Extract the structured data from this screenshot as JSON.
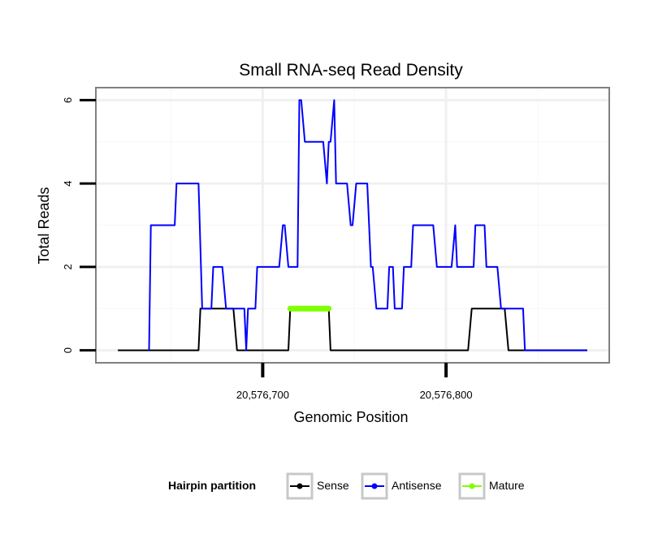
{
  "chart_data": {
    "type": "line",
    "title": "Small RNA-seq Read Density",
    "xlabel": "Genomic Position",
    "ylabel": "Total Reads",
    "xlim": [
      20576609,
      20576889
    ],
    "ylim": [
      -0.3,
      6.3
    ],
    "x_ticks": [
      20576700,
      20576800
    ],
    "x_tick_labels": [
      "20,576,700",
      "20,576,800"
    ],
    "y_ticks": [
      0,
      2,
      4,
      6
    ],
    "y_tick_labels": [
      "0",
      "2",
      "4",
      "6"
    ],
    "grid": true,
    "legend": {
      "title": "Hairpin partition",
      "position": "bottom",
      "entries": [
        "Sense",
        "Antisense",
        "Mature"
      ]
    },
    "series": [
      {
        "name": "Sense",
        "color": "#000000",
        "points": [
          [
            20576621,
            0
          ],
          [
            20576665,
            0
          ],
          [
            20576666,
            1
          ],
          [
            20576684,
            1
          ],
          [
            20576686,
            0
          ],
          [
            20576714,
            0
          ],
          [
            20576715,
            1
          ],
          [
            20576736,
            1
          ],
          [
            20576737,
            0
          ],
          [
            20576812,
            0
          ],
          [
            20576814,
            1
          ],
          [
            20576832,
            1
          ],
          [
            20576834,
            0
          ],
          [
            20576877,
            0
          ]
        ]
      },
      {
        "name": "Antisense",
        "color": "#0000ff",
        "points": [
          [
            20576638,
            0
          ],
          [
            20576639,
            3
          ],
          [
            20576652,
            3
          ],
          [
            20576653,
            4
          ],
          [
            20576665,
            4
          ],
          [
            20576667,
            1
          ],
          [
            20576672,
            1
          ],
          [
            20576673,
            2
          ],
          [
            20576678,
            2
          ],
          [
            20576680,
            1
          ],
          [
            20576690,
            1
          ],
          [
            20576691,
            0
          ],
          [
            20576692,
            1
          ],
          [
            20576696,
            1
          ],
          [
            20576697,
            2
          ],
          [
            20576709,
            2
          ],
          [
            20576711,
            3
          ],
          [
            20576712,
            3
          ],
          [
            20576714,
            2
          ],
          [
            20576719,
            2
          ],
          [
            20576720,
            6
          ],
          [
            20576721,
            6
          ],
          [
            20576723,
            5
          ],
          [
            20576733,
            5
          ],
          [
            20576735,
            4
          ],
          [
            20576736,
            5
          ],
          [
            20576737,
            5
          ],
          [
            20576739,
            6
          ],
          [
            20576740,
            4
          ],
          [
            20576746,
            4
          ],
          [
            20576748,
            3
          ],
          [
            20576749,
            3
          ],
          [
            20576751,
            4
          ],
          [
            20576757,
            4
          ],
          [
            20576759,
            2
          ],
          [
            20576760,
            2
          ],
          [
            20576762,
            1
          ],
          [
            20576768,
            1
          ],
          [
            20576769,
            2
          ],
          [
            20576771,
            2
          ],
          [
            20576772,
            1
          ],
          [
            20576776,
            1
          ],
          [
            20576777,
            2
          ],
          [
            20576781,
            2
          ],
          [
            20576782,
            3
          ],
          [
            20576793,
            3
          ],
          [
            20576795,
            2
          ],
          [
            20576803,
            2
          ],
          [
            20576805,
            3
          ],
          [
            20576806,
            2
          ],
          [
            20576815,
            2
          ],
          [
            20576816,
            3
          ],
          [
            20576821,
            3
          ],
          [
            20576822,
            2
          ],
          [
            20576828,
            2
          ],
          [
            20576830,
            1
          ],
          [
            20576842,
            1
          ],
          [
            20576843,
            0
          ],
          [
            20576877,
            0
          ]
        ]
      },
      {
        "name": "Mature",
        "color": "#7fff00",
        "points": [
          [
            20576715,
            1
          ],
          [
            20576736,
            1
          ]
        ]
      }
    ]
  }
}
